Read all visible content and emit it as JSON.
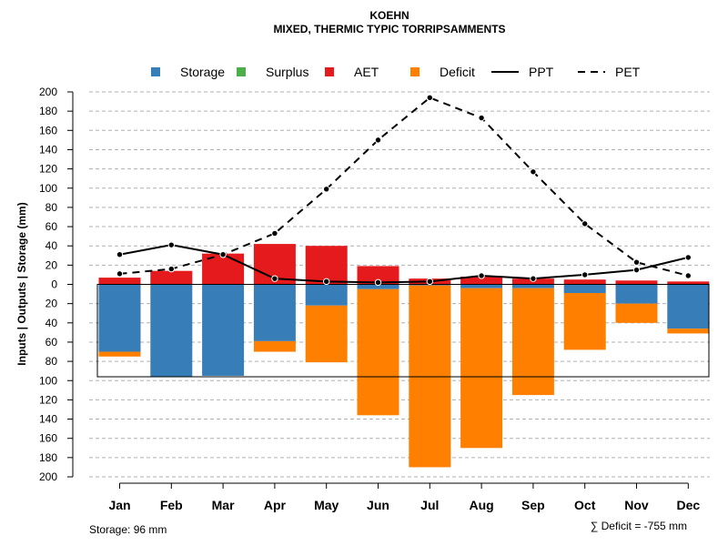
{
  "chart_data": {
    "type": "bar",
    "title": "KOEHN",
    "subtitle": "MIXED, THERMIC TYPIC TORRIPSAMMENTS",
    "ylabel": "Inputs | Outputs | Storage     (mm)",
    "ylim": [
      -200,
      200
    ],
    "yticks": [
      200,
      180,
      160,
      140,
      120,
      100,
      80,
      60,
      40,
      20,
      0,
      20,
      40,
      60,
      80,
      100,
      120,
      140,
      160,
      180,
      200
    ],
    "categories": [
      "Jan",
      "Feb",
      "Mar",
      "Apr",
      "May",
      "Jun",
      "Jul",
      "Aug",
      "Sep",
      "Oct",
      "Nov",
      "Dec"
    ],
    "legend": [
      {
        "name": "Storage",
        "color": "#377EB8",
        "kind": "box"
      },
      {
        "name": "Surplus",
        "color": "#4DAF4A",
        "kind": "box"
      },
      {
        "name": "AET",
        "color": "#E41A1C",
        "kind": "box"
      },
      {
        "name": "Deficit",
        "color": "#FF7F00",
        "kind": "box"
      },
      {
        "name": "PPT",
        "color": "#000000",
        "kind": "solid"
      },
      {
        "name": "PET",
        "color": "#000000",
        "kind": "dashed"
      }
    ],
    "series": [
      {
        "name": "AET",
        "color": "#E41A1C",
        "values": [
          7,
          14,
          32,
          42,
          40,
          19,
          6,
          8,
          6,
          5,
          4,
          3
        ]
      },
      {
        "name": "Storage",
        "color": "#377EB8",
        "values": [
          -70,
          -96,
          -95,
          -59,
          -22,
          -5,
          -1,
          -4,
          -4,
          -9,
          -20,
          -46
        ]
      },
      {
        "name": "Deficit",
        "color": "#FF7F00",
        "values": [
          -5,
          0,
          0,
          -11,
          -59,
          -131,
          -189,
          -166,
          -111,
          -59,
          -20,
          -5
        ]
      },
      {
        "name": "Surplus",
        "color": "#4DAF4A",
        "values": [
          0,
          0,
          0,
          0,
          0,
          0,
          0,
          0,
          0,
          0,
          0,
          0
        ]
      },
      {
        "name": "PPT",
        "color": "#000000",
        "values": [
          31,
          41,
          31,
          6,
          3,
          2,
          3,
          9,
          6,
          10,
          15,
          28
        ]
      },
      {
        "name": "PET",
        "color": "#000000",
        "values": [
          11,
          16,
          31,
          53,
          99,
          150,
          194,
          173,
          117,
          63,
          23,
          9
        ]
      }
    ],
    "storage_capacity": 96,
    "footer_left": "Storage: 96 mm",
    "footer_right": "∑ Deficit = -755 mm"
  }
}
